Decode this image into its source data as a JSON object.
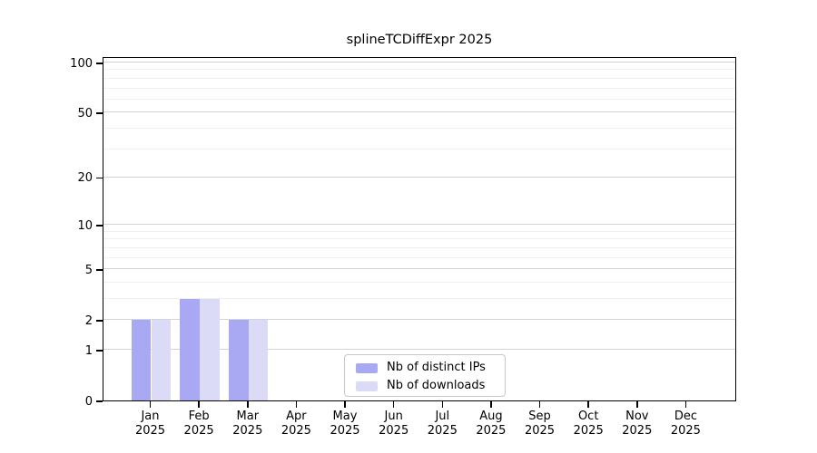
{
  "title": "splineTCDiffExpr 2025",
  "colors": {
    "ips_bar": "#a9a9f3",
    "downloads_bar": "#dbdbf7",
    "grid_major": "#d4d4d4",
    "grid_minor": "#f0f0f0",
    "axis": "#000000",
    "legend_border": "#c8c8c8",
    "background": "#ffffff"
  },
  "y_axis": {
    "scale": "log10(value+1)",
    "labeled_ticks": [
      100,
      50,
      20,
      10,
      5,
      2,
      1,
      0
    ],
    "minor_gridline_values": [
      3,
      4,
      6,
      7,
      8,
      9,
      30,
      40,
      60,
      70,
      80,
      90
    ],
    "major_gridline_values": [
      1,
      2,
      5,
      10,
      20,
      50,
      100
    ]
  },
  "x_axis": {
    "months": [
      "Jan",
      "Feb",
      "Mar",
      "Apr",
      "May",
      "Jun",
      "Jul",
      "Aug",
      "Sep",
      "Oct",
      "Nov",
      "Dec"
    ],
    "year": "2025"
  },
  "legend": {
    "items": [
      {
        "label": "Nb of distinct IPs",
        "color_key": "ips_bar"
      },
      {
        "label": "Nb of downloads",
        "color_key": "downloads_bar"
      }
    ]
  },
  "chart_data": {
    "type": "bar",
    "title": "splineTCDiffExpr 2025",
    "categories": [
      "Jan 2025",
      "Feb 2025",
      "Mar 2025",
      "Apr 2025",
      "May 2025",
      "Jun 2025",
      "Jul 2025",
      "Aug 2025",
      "Sep 2025",
      "Oct 2025",
      "Nov 2025",
      "Dec 2025"
    ],
    "series": [
      {
        "name": "Nb of distinct IPs",
        "color": "#a9a9f3",
        "values": [
          2,
          3,
          2,
          0,
          0,
          0,
          0,
          0,
          0,
          0,
          0,
          0
        ]
      },
      {
        "name": "Nb of downloads",
        "color": "#dbdbf7",
        "values": [
          2,
          3,
          2,
          0,
          0,
          0,
          0,
          0,
          0,
          0,
          0,
          0
        ]
      }
    ],
    "xlabel": "",
    "ylabel": "",
    "ylim": [
      0,
      100
    ],
    "y_scale": "log1p",
    "y_ticks": [
      0,
      1,
      2,
      5,
      10,
      20,
      50,
      100
    ],
    "grid": true,
    "legend_position": "inside bottom-center"
  }
}
